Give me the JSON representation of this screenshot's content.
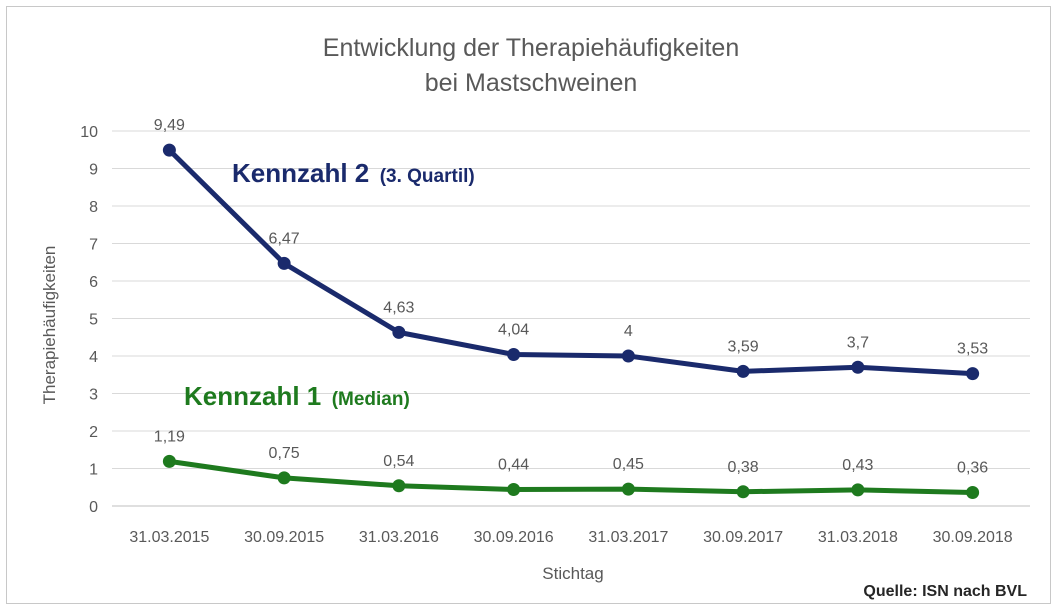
{
  "chart_data": {
    "type": "line",
    "title": [
      "Entwicklung der Therapiehäufigkeiten",
      "bei Mastschweinen"
    ],
    "xlabel": "Stichtag",
    "ylabel": "Therapiehäufigkeiten",
    "ylim": [
      0,
      10
    ],
    "yticks": [
      0,
      1,
      2,
      3,
      4,
      5,
      6,
      7,
      8,
      9,
      10
    ],
    "grid": true,
    "categories": [
      "31.03.2015",
      "30.09.2015",
      "31.03.2016",
      "30.09.2016",
      "31.03.2017",
      "30.09.2017",
      "31.03.2018",
      "30.09.2018"
    ],
    "series": [
      {
        "label_main": "Kennzahl 2",
        "label_sub": "(3. Quartil)",
        "color": "#1a2a6c",
        "values": [
          9.49,
          6.47,
          4.63,
          4.04,
          4,
          3.59,
          3.7,
          3.53
        ],
        "data_labels": [
          "9,49",
          "6,47",
          "4,63",
          "4,04",
          "4",
          "3,59",
          "3,7",
          "3,53"
        ]
      },
      {
        "label_main": "Kennzahl 1",
        "label_sub": "(Median)",
        "color": "#1e7a1e",
        "values": [
          1.19,
          0.75,
          0.54,
          0.44,
          0.45,
          0.38,
          0.43,
          0.36
        ],
        "data_labels": [
          "1,19",
          "0,75",
          "0,54",
          "0,44",
          "0,45",
          "0,38",
          "0,43",
          "0,36"
        ]
      }
    ],
    "source": "Quelle: ISN nach BVL"
  }
}
